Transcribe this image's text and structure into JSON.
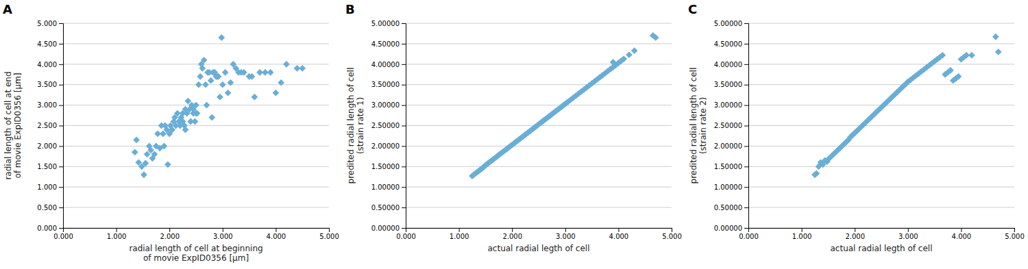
{
  "chart_data": [
    {
      "type": "scatter",
      "title": "A",
      "xlabel": "radial length of cell at beginning\nof movie ExpID0356 [μm]",
      "ylabel": "radial length of cell at end\nof movie ExpID0356 [μm]",
      "color": "#6aaed6",
      "marker": "diamond",
      "grid": "y",
      "xlim": [
        0.0,
        5.0
      ],
      "ylim": [
        0.0,
        5.0
      ],
      "xticks": [
        {
          "value": 0.0,
          "label": "0.000"
        },
        {
          "value": 1.0,
          "label": "1.000"
        },
        {
          "value": 2.0,
          "label": "2.000"
        },
        {
          "value": 3.0,
          "label": "3.000"
        },
        {
          "value": 4.0,
          "label": "4.000"
        },
        {
          "value": 5.0,
          "label": "5.000"
        }
      ],
      "yticks": [
        {
          "value": 0.0,
          "label": "0.000"
        },
        {
          "value": 0.5,
          "label": "0.500"
        },
        {
          "value": 1.0,
          "label": "1.000"
        },
        {
          "value": 1.5,
          "label": "1.500"
        },
        {
          "value": 2.0,
          "label": "2.000"
        },
        {
          "value": 2.5,
          "label": "2.500"
        },
        {
          "value": 3.0,
          "label": "3.000"
        },
        {
          "value": 3.5,
          "label": "3.500"
        },
        {
          "value": 4.0,
          "label": "4.000"
        },
        {
          "value": 4.5,
          "label": "4.500"
        },
        {
          "value": 5.0,
          "label": "5.000"
        }
      ],
      "x": [
        1.35,
        1.38,
        1.42,
        1.48,
        1.52,
        1.55,
        1.58,
        1.62,
        1.65,
        1.68,
        1.72,
        1.75,
        1.78,
        1.82,
        1.85,
        1.88,
        1.9,
        1.92,
        1.95,
        1.97,
        2.0,
        2.02,
        2.05,
        2.08,
        2.1,
        2.12,
        2.15,
        2.18,
        2.2,
        2.22,
        2.25,
        2.25,
        2.28,
        2.3,
        2.3,
        2.33,
        2.35,
        2.38,
        2.4,
        2.42,
        2.45,
        2.45,
        2.48,
        2.5,
        2.5,
        2.52,
        2.55,
        2.58,
        2.6,
        2.62,
        2.65,
        2.68,
        2.7,
        2.72,
        2.75,
        2.78,
        2.8,
        2.82,
        2.85,
        2.88,
        2.9,
        2.92,
        2.95,
        2.98,
        3.0,
        3.05,
        3.1,
        3.15,
        3.2,
        3.25,
        3.3,
        3.35,
        3.4,
        3.5,
        3.55,
        3.6,
        3.7,
        3.8,
        3.9,
        4.0,
        4.1,
        4.2,
        4.4,
        4.5
      ],
      "values": [
        1.85,
        2.15,
        1.6,
        1.5,
        1.3,
        1.58,
        1.8,
        2.0,
        1.9,
        1.7,
        1.8,
        2.0,
        2.3,
        1.95,
        2.5,
        2.3,
        2.0,
        2.5,
        2.4,
        1.55,
        2.3,
        2.5,
        2.4,
        2.6,
        2.7,
        2.5,
        2.8,
        2.6,
        2.5,
        2.7,
        2.6,
        2.8,
        2.5,
        2.9,
        2.4,
        2.8,
        3.1,
        2.9,
        2.6,
        3.0,
        2.8,
        2.9,
        2.6,
        2.8,
        3.0,
        2.8,
        3.5,
        3.7,
        4.0,
        3.9,
        4.1,
        3.5,
        3.0,
        3.8,
        3.8,
        3.6,
        2.7,
        3.8,
        3.8,
        3.7,
        3.7,
        3.7,
        3.2,
        4.65,
        3.5,
        3.8,
        3.3,
        3.55,
        4.0,
        3.9,
        3.8,
        3.8,
        3.8,
        3.7,
        3.7,
        3.2,
        3.8,
        3.8,
        3.8,
        3.3,
        3.55,
        4.0,
        3.9,
        3.9
      ]
    },
    {
      "type": "scatter",
      "title": "B",
      "xlabel": "actual radial legth of cell",
      "ylabel": "predited radial length of cell\n(strain rate 1)",
      "color": "#6aaed6",
      "marker": "diamond",
      "grid": "y",
      "xlim": [
        0.0,
        5.0
      ],
      "ylim": [
        0.0,
        5.0
      ],
      "xticks": [
        {
          "value": 0.0,
          "label": "0.000"
        },
        {
          "value": 1.0,
          "label": "1.000"
        },
        {
          "value": 2.0,
          "label": "2.000"
        },
        {
          "value": 3.0,
          "label": "3.000"
        },
        {
          "value": 4.0,
          "label": "4.000"
        },
        {
          "value": 5.0,
          "label": "5.000"
        }
      ],
      "yticks": [
        {
          "value": 0.0,
          "label": "0.00000"
        },
        {
          "value": 0.5,
          "label": "0.50000"
        },
        {
          "value": 1.0,
          "label": "1.00000"
        },
        {
          "value": 1.5,
          "label": "1.50000"
        },
        {
          "value": 2.0,
          "label": "2.00000"
        },
        {
          "value": 2.5,
          "label": "2.50000"
        },
        {
          "value": 3.0,
          "label": "3.00000"
        },
        {
          "value": 3.5,
          "label": "3.50000"
        },
        {
          "value": 4.0,
          "label": "4.00000"
        },
        {
          "value": 4.5,
          "label": "4.50000"
        },
        {
          "value": 5.0,
          "label": "5.00000"
        }
      ],
      "x": [
        1.25,
        1.28,
        1.31,
        1.34,
        1.37,
        1.4,
        1.43,
        1.46,
        1.49,
        1.52,
        1.55,
        1.58,
        1.61,
        1.64,
        1.67,
        1.7,
        1.73,
        1.76,
        1.79,
        1.82,
        1.85,
        1.88,
        1.91,
        1.94,
        1.97,
        2.0,
        2.03,
        2.06,
        2.09,
        2.12,
        2.15,
        2.18,
        2.21,
        2.24,
        2.27,
        2.3,
        2.33,
        2.36,
        2.39,
        2.42,
        2.45,
        2.48,
        2.51,
        2.54,
        2.57,
        2.6,
        2.63,
        2.66,
        2.69,
        2.72,
        2.75,
        2.78,
        2.81,
        2.84,
        2.87,
        2.9,
        2.93,
        2.96,
        2.99,
        3.02,
        3.05,
        3.1,
        3.15,
        3.2,
        3.25,
        3.3,
        3.35,
        3.4,
        3.45,
        3.5,
        3.55,
        3.6,
        3.65,
        3.7,
        3.75,
        3.8,
        3.85,
        3.9,
        3.95,
        4.0,
        4.05,
        4.1,
        4.2,
        4.3,
        3.9,
        4.65,
        4.7
      ],
      "values": [
        1.27,
        1.3,
        1.33,
        1.36,
        1.39,
        1.42,
        1.45,
        1.48,
        1.52,
        1.55,
        1.58,
        1.61,
        1.64,
        1.67,
        1.7,
        1.73,
        1.76,
        1.79,
        1.82,
        1.85,
        1.88,
        1.91,
        1.94,
        1.97,
        2.0,
        2.03,
        2.06,
        2.09,
        2.12,
        2.15,
        2.18,
        2.21,
        2.24,
        2.27,
        2.3,
        2.33,
        2.36,
        2.39,
        2.42,
        2.45,
        2.48,
        2.51,
        2.54,
        2.57,
        2.6,
        2.63,
        2.66,
        2.69,
        2.72,
        2.75,
        2.78,
        2.81,
        2.84,
        2.87,
        2.9,
        2.93,
        2.96,
        2.99,
        3.02,
        3.05,
        3.08,
        3.13,
        3.18,
        3.23,
        3.28,
        3.33,
        3.38,
        3.43,
        3.48,
        3.53,
        3.58,
        3.63,
        3.68,
        3.73,
        3.78,
        3.83,
        3.88,
        3.93,
        3.98,
        4.03,
        4.08,
        4.13,
        4.23,
        4.33,
        4.05,
        4.7,
        4.65
      ]
    },
    {
      "type": "scatter",
      "title": "C",
      "xlabel": "actual radial legth of cell",
      "ylabel": "predited radial length of cell\n(strain rate 2)",
      "color": "#6aaed6",
      "marker": "diamond",
      "grid": "y",
      "xlim": [
        0.0,
        5.0
      ],
      "ylim": [
        0.0,
        5.0
      ],
      "xticks": [
        {
          "value": 0.0,
          "label": "0.000"
        },
        {
          "value": 1.0,
          "label": "1.000"
        },
        {
          "value": 2.0,
          "label": "2.000"
        },
        {
          "value": 3.0,
          "label": "3.000"
        },
        {
          "value": 4.0,
          "label": "4.000"
        },
        {
          "value": 5.0,
          "label": "5.000"
        }
      ],
      "yticks": [
        {
          "value": 0.0,
          "label": "0.00000"
        },
        {
          "value": 0.5,
          "label": "0.50000"
        },
        {
          "value": 1.0,
          "label": "1.00000"
        },
        {
          "value": 1.5,
          "label": "1.50000"
        },
        {
          "value": 2.0,
          "label": "2.00000"
        },
        {
          "value": 2.5,
          "label": "2.50000"
        },
        {
          "value": 3.0,
          "label": "3.00000"
        },
        {
          "value": 3.5,
          "label": "3.50000"
        },
        {
          "value": 4.0,
          "label": "4.00000"
        },
        {
          "value": 4.5,
          "label": "4.50000"
        },
        {
          "value": 5.0,
          "label": "5.00000"
        }
      ],
      "x": [
        1.25,
        1.28,
        1.32,
        1.36,
        1.4,
        1.44,
        1.48,
        1.52,
        1.56,
        1.6,
        1.64,
        1.68,
        1.72,
        1.76,
        1.8,
        1.84,
        1.88,
        1.92,
        1.96,
        2.0,
        2.04,
        2.08,
        2.12,
        2.16,
        2.2,
        2.24,
        2.28,
        2.32,
        2.36,
        2.4,
        2.44,
        2.48,
        2.52,
        2.56,
        2.6,
        2.64,
        2.68,
        2.72,
        2.76,
        2.8,
        2.84,
        2.88,
        2.92,
        2.96,
        3.0,
        3.05,
        3.1,
        3.15,
        3.2,
        3.25,
        3.3,
        3.35,
        3.4,
        3.45,
        3.5,
        3.55,
        3.6,
        3.65,
        3.7,
        3.75,
        3.8,
        3.85,
        3.9,
        3.95,
        4.0,
        4.05,
        4.1,
        4.2,
        4.65,
        4.7
      ],
      "values": [
        1.3,
        1.33,
        1.5,
        1.6,
        1.55,
        1.65,
        1.62,
        1.7,
        1.75,
        1.8,
        1.85,
        1.9,
        1.95,
        2.0,
        2.05,
        2.1,
        2.15,
        2.22,
        2.27,
        2.32,
        2.37,
        2.42,
        2.47,
        2.52,
        2.57,
        2.62,
        2.67,
        2.72,
        2.77,
        2.82,
        2.87,
        2.92,
        2.97,
        3.02,
        3.07,
        3.12,
        3.17,
        3.22,
        3.27,
        3.32,
        3.37,
        3.42,
        3.47,
        3.52,
        3.57,
        3.62,
        3.67,
        3.72,
        3.77,
        3.82,
        3.87,
        3.92,
        3.97,
        4.02,
        4.07,
        4.12,
        4.17,
        4.22,
        3.75,
        3.8,
        3.85,
        3.6,
        3.65,
        3.7,
        4.12,
        4.17,
        4.22,
        4.22,
        4.67,
        4.3
      ]
    }
  ]
}
